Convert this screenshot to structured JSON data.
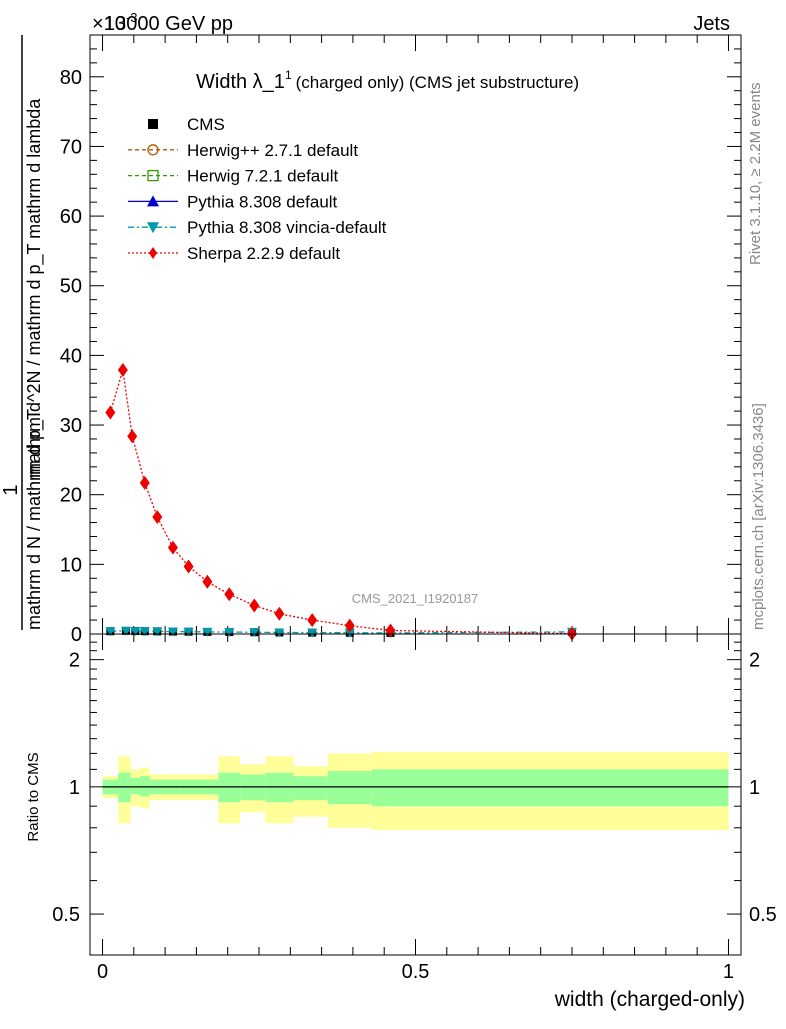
{
  "header": {
    "process": "13000 GeV pp",
    "category": "Jets",
    "exponent_label": "×10",
    "exponent_sup": "-3",
    "side_rivet": "Rivet 3.1.10, ≥ 2.2M events",
    "side_mcplots": "mcplots.cern.ch [arXiv:1306.3436]"
  },
  "chart_data": {
    "type": "line",
    "title": "Width λ_1",
    "title_sup": "1",
    "title_suffix": "(charged only) (CMS jet substructure)",
    "analysis_label": "CMS_2021_I1920187",
    "xlabel": "width (charged-only)",
    "ylabel_main_numerator": "1",
    "ylabel_main_denominator": "mathrm d N / mathrm d p_T",
    "ylabel_main_right": "mathrm d^2N / mathrm d p_T mathrm d lambda",
    "ylabel_ratio": "Ratio to CMS",
    "xlim": [
      -0.02,
      1.02
    ],
    "ylim_main": [
      0,
      86
    ],
    "ylim_ratio": [
      0.4,
      2.3
    ],
    "x_ticks": [
      {
        "value": 0,
        "label": "0"
      },
      {
        "value": 0.5,
        "label": "0.5"
      },
      {
        "value": 1,
        "label": "1"
      }
    ],
    "y_ticks_main": [
      0,
      10,
      20,
      30,
      40,
      50,
      60,
      70,
      80
    ],
    "y_ticks_ratio": [
      {
        "value": 0.5,
        "label": "0.5"
      },
      {
        "value": 1,
        "label": "1"
      },
      {
        "value": 2,
        "label": "2"
      }
    ],
    "series": [
      {
        "name": "CMS",
        "color": "#000000",
        "marker": "square-filled",
        "line": "none",
        "x": [
          0.0125,
          0.0375,
          0.0525,
          0.0675,
          0.0875,
          0.1125,
          0.1375,
          0.1675,
          0.2025,
          0.2425,
          0.2825,
          0.335,
          0.395,
          0.46,
          0.75
        ],
        "y": [
          0.4,
          0.45,
          0.42,
          0.4,
          0.38,
          0.35,
          0.33,
          0.3,
          0.28,
          0.25,
          0.22,
          0.2,
          0.18,
          0.15,
          0.3
        ]
      },
      {
        "name": "Herwig++ 2.7.1 default",
        "color": "#b35900",
        "marker": "circle-open",
        "line": "dashed"
      },
      {
        "name": "Herwig 7.2.1 default",
        "color": "#339900",
        "marker": "square-open",
        "line": "dashed"
      },
      {
        "name": "Pythia 8.308 default",
        "color": "#0000cc",
        "marker": "triangle-up",
        "line": "solid"
      },
      {
        "name": "Pythia 8.308 vincia-default",
        "color": "#0099aa",
        "marker": "triangle-down",
        "line": "dashdot",
        "x": [
          0.0125,
          0.0375,
          0.0525,
          0.0675,
          0.0875,
          0.1125,
          0.1375,
          0.1675,
          0.2025,
          0.2425,
          0.2825,
          0.335,
          0.395,
          0.46,
          0.75
        ],
        "y": [
          0.4,
          0.45,
          0.42,
          0.4,
          0.38,
          0.35,
          0.33,
          0.3,
          0.28,
          0.25,
          0.22,
          0.2,
          0.18,
          0.15,
          0.3
        ]
      },
      {
        "name": "Sherpa 2.2.9 default",
        "color": "#ee0000",
        "marker": "diamond",
        "line": "dotted",
        "x": [
          0.0125,
          0.0325,
          0.0475,
          0.0675,
          0.0875,
          0.1125,
          0.1375,
          0.1675,
          0.2025,
          0.2425,
          0.2825,
          0.335,
          0.395,
          0.46,
          0.75
        ],
        "y": [
          31.8,
          37.9,
          28.4,
          21.7,
          16.8,
          12.4,
          9.7,
          7.5,
          5.7,
          4.1,
          2.9,
          2.0,
          1.2,
          0.5,
          0.05
        ]
      }
    ],
    "ratio_bands": {
      "edges": [
        0,
        0.025,
        0.045,
        0.06,
        0.075,
        0.1,
        0.125,
        0.15,
        0.185,
        0.22,
        0.26,
        0.305,
        0.36,
        0.43,
        1.0
      ],
      "inner_color": "#99ff99",
      "outer_color": "#ffff99",
      "inner": [
        [
          0.96,
          1.04
        ],
        [
          0.92,
          1.08
        ],
        [
          0.96,
          1.05
        ],
        [
          0.95,
          1.06
        ],
        [
          0.96,
          1.04
        ],
        [
          0.96,
          1.04
        ],
        [
          0.96,
          1.04
        ],
        [
          0.96,
          1.04
        ],
        [
          0.92,
          1.08
        ],
        [
          0.93,
          1.07
        ],
        [
          0.92,
          1.08
        ],
        [
          0.93,
          1.06
        ],
        [
          0.91,
          1.09
        ],
        [
          0.9,
          1.1
        ],
        [
          0.9,
          1.1
        ]
      ],
      "outer": [
        [
          0.94,
          1.06
        ],
        [
          0.82,
          1.18
        ],
        [
          0.9,
          1.1
        ],
        [
          0.89,
          1.11
        ],
        [
          0.93,
          1.07
        ],
        [
          0.93,
          1.07
        ],
        [
          0.93,
          1.07
        ],
        [
          0.93,
          1.07
        ],
        [
          0.82,
          1.18
        ],
        [
          0.87,
          1.13
        ],
        [
          0.82,
          1.18
        ],
        [
          0.85,
          1.12
        ],
        [
          0.8,
          1.2
        ],
        [
          0.79,
          1.21
        ],
        [
          0.79,
          1.21
        ]
      ]
    },
    "legend_position": "top-left"
  }
}
